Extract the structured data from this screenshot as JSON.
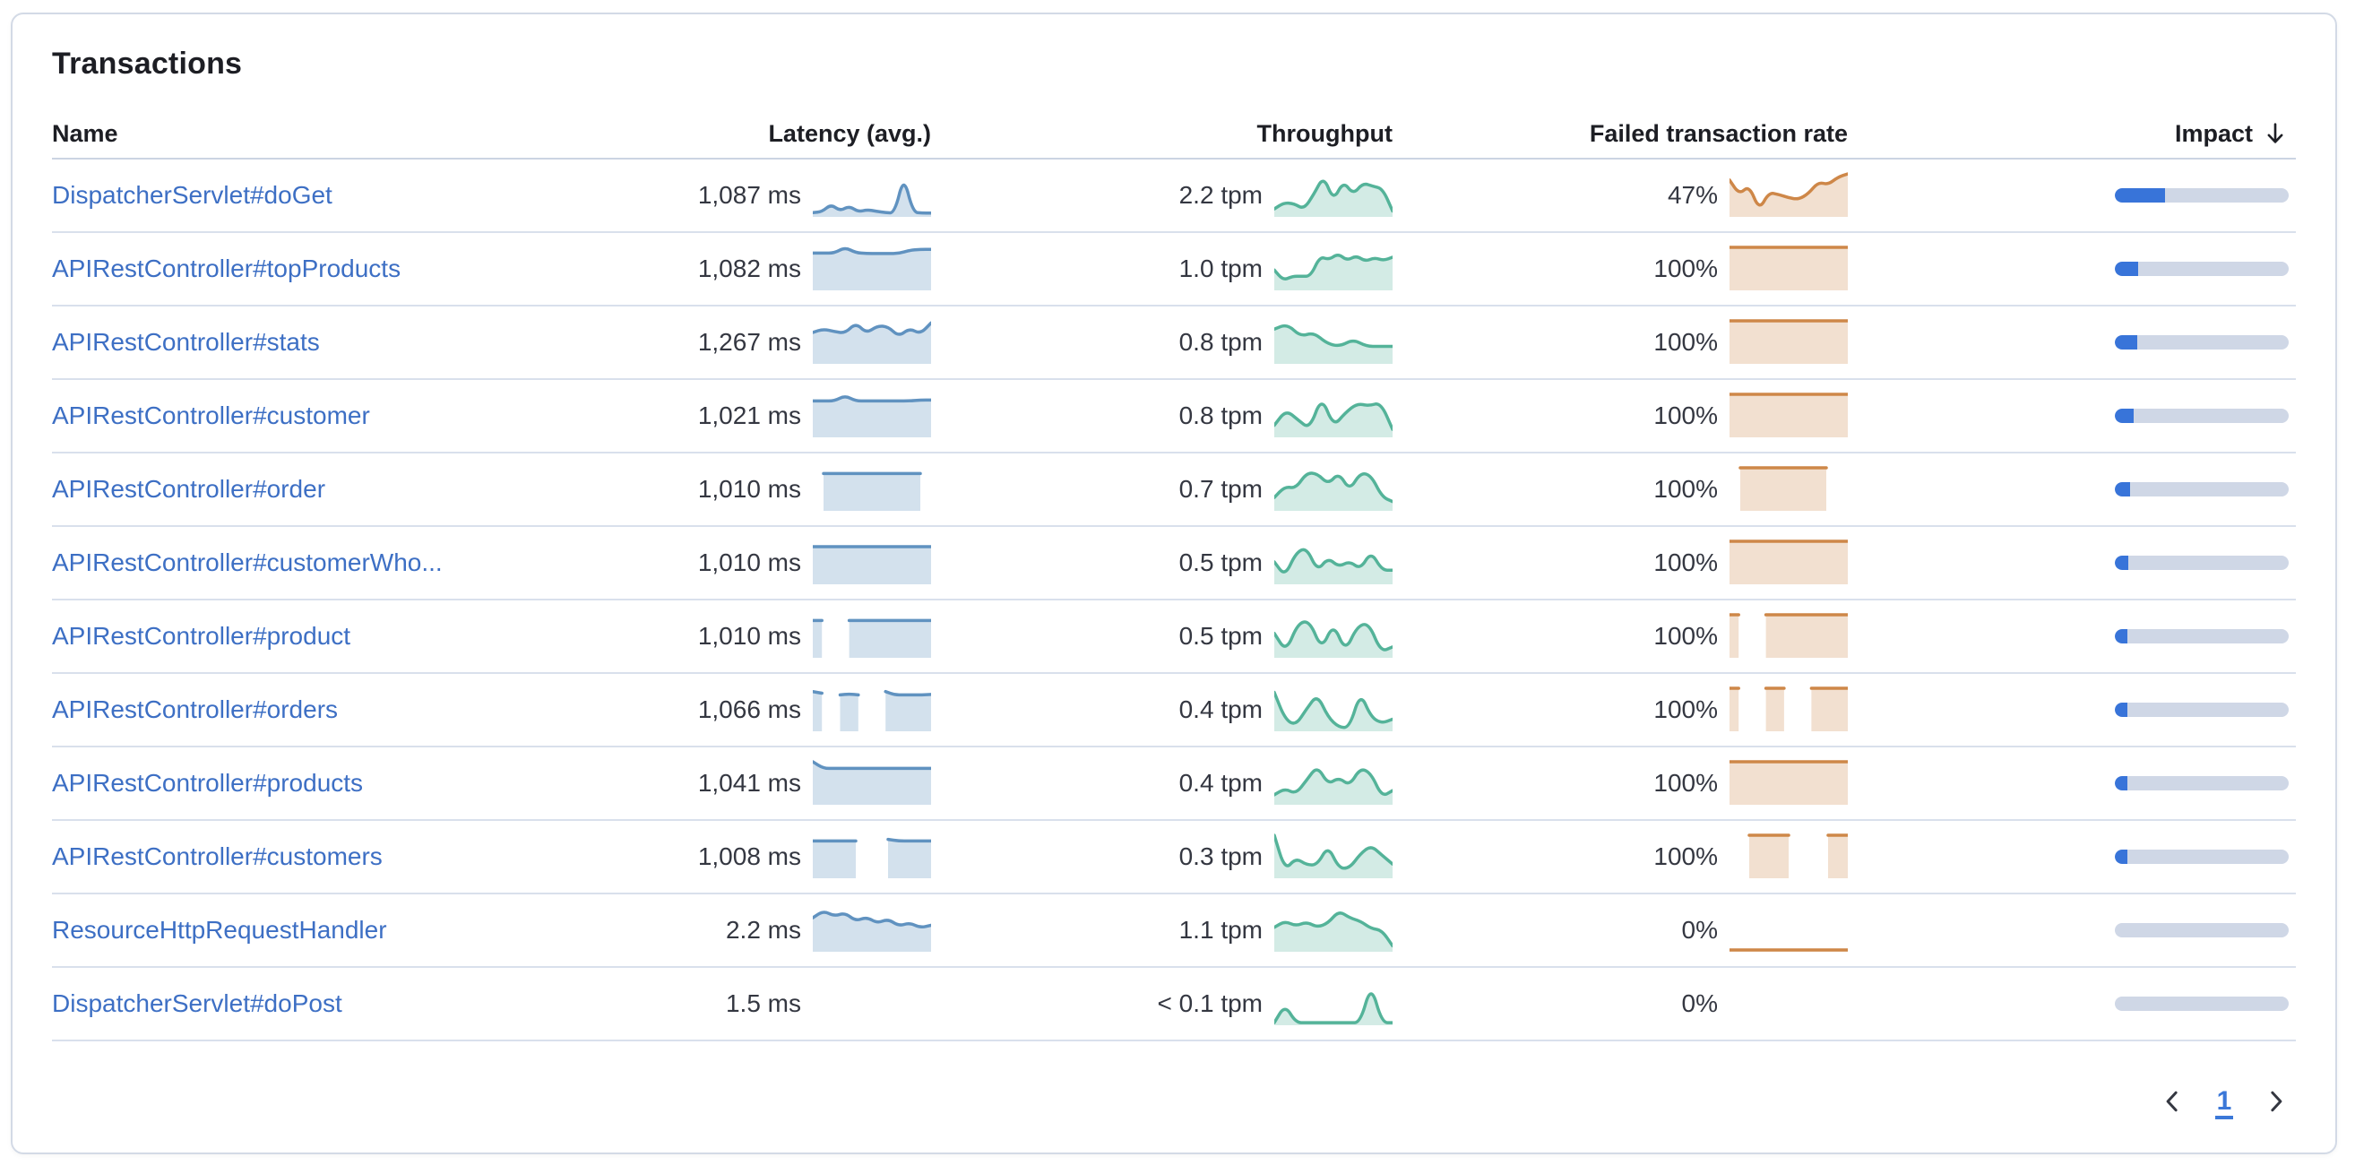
{
  "panel": {
    "title": "Transactions"
  },
  "table": {
    "columns": {
      "name": "Name",
      "latency": "Latency (avg.)",
      "throughput": "Throughput",
      "failed_rate": "Failed transaction rate",
      "impact": "Impact"
    },
    "sort": {
      "column": "impact",
      "direction": "descending",
      "icon": "arrow-down-icon"
    },
    "rows": [
      {
        "name": "DispatcherServlet#doGet",
        "latency": "1,087 ms",
        "latency_spark": [
          0.06,
          0.08,
          0.26,
          0.1,
          0.22,
          0.08,
          0.13,
          0.09,
          0.06,
          0.05,
          0.95,
          0.07,
          0.05,
          0.05
        ],
        "throughput": "2.2 tpm",
        "throughput_spark": [
          0.15,
          0.3,
          0.28,
          0.14,
          0.5,
          0.95,
          0.35,
          0.82,
          0.5,
          0.78,
          0.7,
          0.64,
          0.1
        ],
        "failed_rate": "47%",
        "failed_spark": [
          0.85,
          0.5,
          0.72,
          0.12,
          0.55,
          0.5,
          0.42,
          0.38,
          0.52,
          0.8,
          0.74,
          0.92,
          1.0
        ],
        "impact_pct": 29
      },
      {
        "name": "APIRestController#topProducts",
        "latency": "1,082 ms",
        "latency_spark": [
          0.86,
          0.86,
          0.86,
          1.0,
          0.87,
          0.85,
          0.85,
          0.85,
          0.85,
          0.93,
          0.95,
          0.95
        ],
        "throughput": "1.0 tpm",
        "throughput_spark": [
          0.45,
          0.2,
          0.3,
          0.3,
          0.3,
          0.78,
          0.7,
          0.85,
          0.68,
          0.8,
          0.66,
          0.75,
          0.68,
          0.76
        ],
        "failed_rate": "100%",
        "failed_spark": [
          1,
          1,
          1,
          1,
          1,
          1,
          1,
          1,
          1,
          1,
          1,
          1
        ],
        "impact_pct": 13.5
      },
      {
        "name": "APIRestController#stats",
        "latency": "1,267 ms",
        "latency_spark": [
          0.72,
          0.8,
          0.74,
          0.7,
          0.95,
          0.7,
          0.88,
          0.86,
          0.62,
          0.82,
          0.68,
          0.95
        ],
        "throughput": "0.8 tpm",
        "throughput_spark": [
          0.8,
          0.92,
          0.62,
          0.72,
          0.45,
          0.38,
          0.55,
          0.38,
          0.38,
          0.38
        ],
        "failed_rate": "100%",
        "failed_spark": [
          1,
          1,
          1,
          1,
          1,
          1,
          1,
          1,
          1,
          1,
          1,
          1
        ],
        "impact_pct": 13
      },
      {
        "name": "APIRestController#customer",
        "latency": "1,021 ms",
        "latency_spark": [
          0.84,
          0.84,
          0.84,
          0.97,
          0.84,
          0.84,
          0.84,
          0.84,
          0.84,
          0.84,
          0.86,
          0.86
        ],
        "throughput": "0.8 tpm",
        "throughput_spark": [
          0.25,
          0.62,
          0.38,
          0.16,
          0.95,
          0.22,
          0.55,
          0.78,
          0.72,
          0.8,
          0.15
        ],
        "failed_rate": "100%",
        "failed_spark": [
          1,
          1,
          1,
          1,
          1,
          1,
          1,
          1,
          1,
          1,
          1,
          1
        ],
        "impact_pct": 11
      },
      {
        "name": "APIRestController#order",
        "latency": "1,010 ms",
        "latency_spark": [
          null,
          0.86,
          0.86,
          0.86,
          0.86,
          0.86,
          0.86,
          0.86,
          0.86,
          0.86,
          0.86,
          null
        ],
        "throughput": "0.7 tpm",
        "throughput_spark": [
          0.28,
          0.55,
          0.5,
          0.88,
          0.86,
          0.6,
          0.88,
          0.45,
          0.88,
          0.82,
          0.3,
          0.18
        ],
        "failed_rate": "100%",
        "failed_spark": [
          null,
          1,
          1,
          1,
          1,
          1,
          1,
          1,
          1,
          1,
          null,
          null
        ],
        "impact_pct": 9
      },
      {
        "name": "APIRestController#customerWho...",
        "latency": "1,010 ms",
        "latency_spark": [
          0.87,
          0.87,
          0.87,
          0.87,
          0.87,
          0.87,
          0.87,
          0.87,
          0.87,
          0.87,
          0.87,
          0.87
        ],
        "throughput": "0.5 tpm",
        "throughput_spark": [
          0.5,
          0.15,
          0.72,
          0.85,
          0.28,
          0.6,
          0.38,
          0.52,
          0.32,
          0.75,
          0.3,
          0.3
        ],
        "failed_rate": "100%",
        "failed_spark": [
          1,
          1,
          1,
          1,
          1,
          1,
          1,
          1,
          1,
          1,
          1,
          1
        ],
        "impact_pct": 7.5
      },
      {
        "name": "APIRestController#product",
        "latency": "1,010 ms",
        "latency_spark": [
          0.86,
          0.86,
          null,
          null,
          0.86,
          0.86,
          0.86,
          0.86,
          0.86,
          0.86,
          0.86,
          0.86,
          0.86,
          0.86
        ],
        "throughput": "0.5 tpm",
        "throughput_spark": [
          0.55,
          0.1,
          0.8,
          0.85,
          0.15,
          0.8,
          0.1,
          0.72,
          0.8,
          0.1,
          0.22
        ],
        "failed_rate": "100%",
        "failed_spark": [
          1,
          1,
          null,
          null,
          1,
          1,
          1,
          1,
          1,
          1,
          1,
          1,
          1,
          1
        ],
        "impact_pct": 6.5
      },
      {
        "name": "APIRestController#orders",
        "latency": "1,066 ms",
        "latency_spark": [
          0.92,
          0.88,
          null,
          0.84,
          0.86,
          0.84,
          null,
          null,
          0.92,
          0.84,
          0.84,
          0.84,
          0.84,
          0.85
        ],
        "throughput": "0.4 tpm",
        "throughput_spark": [
          0.9,
          0.25,
          0.1,
          0.5,
          0.85,
          0.3,
          0.05,
          0.05,
          0.9,
          0.3,
          0.15,
          0.25
        ],
        "failed_rate": "100%",
        "failed_spark": [
          1,
          1,
          null,
          null,
          1,
          1,
          1,
          null,
          null,
          1,
          1,
          1,
          1,
          1
        ],
        "impact_pct": 6
      },
      {
        "name": "APIRestController#products",
        "latency": "1,041 ms",
        "latency_spark": [
          1.0,
          0.84,
          0.84,
          0.84,
          0.84,
          0.84,
          0.84,
          0.84,
          0.84,
          0.84,
          0.84,
          0.84
        ],
        "throughput": "0.4 tpm",
        "throughput_spark": [
          0.2,
          0.35,
          0.22,
          0.55,
          0.9,
          0.45,
          0.62,
          0.42,
          0.85,
          0.72,
          0.15,
          0.3
        ],
        "failed_rate": "100%",
        "failed_spark": [
          1,
          1,
          1,
          1,
          1,
          1,
          1,
          1,
          1,
          1,
          1,
          1
        ],
        "impact_pct": 5.5
      },
      {
        "name": "APIRestController#customers",
        "latency": "1,008 ms",
        "latency_spark": [
          0.86,
          0.86,
          0.86,
          0.86,
          0.86,
          null,
          null,
          0.9,
          0.86,
          0.86,
          0.86,
          0.86
        ],
        "throughput": "0.3 tpm",
        "throughput_spark": [
          1.0,
          0.15,
          0.45,
          0.28,
          0.28,
          0.75,
          0.2,
          0.2,
          0.55,
          0.75,
          0.52,
          0.3
        ],
        "failed_rate": "100%",
        "failed_spark": [
          null,
          null,
          1,
          1,
          1,
          1,
          1,
          null,
          null,
          null,
          1,
          1,
          1
        ],
        "impact_pct": 4.8
      },
      {
        "name": "ResourceHttpRequestHandler",
        "latency": "2.2 ms",
        "latency_spark": [
          0.78,
          0.95,
          0.82,
          0.9,
          0.7,
          0.8,
          0.65,
          0.75,
          0.58,
          0.66,
          0.54,
          0.6
        ],
        "throughput": "1.1 tpm",
        "throughput_spark": [
          0.55,
          0.7,
          0.58,
          0.68,
          0.55,
          0.65,
          0.95,
          0.78,
          0.7,
          0.52,
          0.48,
          0.1
        ],
        "failed_rate": "0%",
        "failed_spark": [
          0,
          0,
          0,
          0,
          0,
          0,
          0,
          0,
          0,
          0,
          0,
          0
        ],
        "impact_pct": 0
      },
      {
        "name": "DispatcherServlet#doPost",
        "latency": "1.5 ms",
        "latency_spark": null,
        "throughput": "< 0.1 tpm",
        "throughput_spark": [
          0.02,
          0.45,
          0.02,
          0.02,
          0.02,
          0.02,
          0.02,
          0.02,
          0.02,
          0.95,
          0.02,
          0.02
        ],
        "failed_rate": "0%",
        "failed_spark": null,
        "impact_pct": 0
      }
    ]
  },
  "pagination": {
    "page": "1",
    "prev_icon": "chevron-left-icon",
    "next_icon": "chevron-right-icon"
  },
  "colors": {
    "title_text": "#1D1E24",
    "value_text": "#343741",
    "link_blue": "#3D6FC4",
    "card_border": "#D3DAE6",
    "row_divider": "#D9E0EC",
    "header_divider": "#CBD4E2",
    "impact_fill": "#3874D9",
    "impact_track": "#CFD7E6",
    "latency_stroke": "#6092C0",
    "latency_fill": "rgba(96,146,192,0.28)",
    "throughput_stroke": "#54B399",
    "throughput_fill": "rgba(84,179,153,0.26)",
    "failed_stroke": "#CE8748",
    "failed_fill": "rgba(206,135,72,0.26)",
    "pagination_current": "#3B78D8"
  }
}
